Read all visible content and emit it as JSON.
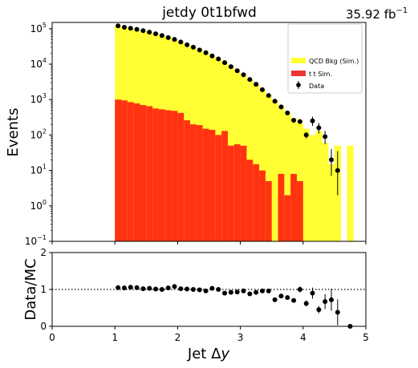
{
  "header": {
    "title": "jetdy   0t1bfwd",
    "lumi_value": "35.92 fb",
    "lumi_exp": "−1"
  },
  "legend": {
    "qcd_label": "QCD Bkg (Sim.)",
    "ttbar_label": "t t Sim.",
    "data_label": "Data"
  },
  "colors": {
    "qcd": "#ffff33",
    "ttbar": "#ff3311",
    "ttbar_legend": "#ee3333",
    "data": "#000000"
  },
  "chart_data": [
    {
      "type": "bar",
      "title": "jetdy   0t1bfwd",
      "ylabel": "Events",
      "yscale": "log",
      "ylim": [
        0.1,
        150000
      ],
      "xlim": [
        0,
        5
      ],
      "bin_width": 0.1,
      "bin_lo": [
        1.0,
        1.1,
        1.2,
        1.3,
        1.4,
        1.5,
        1.6,
        1.7,
        1.8,
        1.9,
        2.0,
        2.1,
        2.2,
        2.3,
        2.4,
        2.5,
        2.6,
        2.7,
        2.8,
        2.9,
        3.0,
        3.1,
        3.2,
        3.3,
        3.4,
        3.5,
        3.6,
        3.7,
        3.8,
        3.9,
        4.0,
        4.1,
        4.2,
        4.3,
        4.4,
        4.5,
        4.6,
        4.7
      ],
      "x_ticks": [
        "0",
        "1",
        "2",
        "3",
        "4",
        "5"
      ],
      "y_ticks": [
        {
          "base": "10",
          "exp": "−1",
          "value": 0.1
        },
        {
          "base": "10",
          "exp": "0",
          "value": 1
        },
        {
          "base": "10",
          "exp": "1",
          "value": 10
        },
        {
          "base": "10",
          "exp": "2",
          "value": 100
        },
        {
          "base": "10",
          "exp": "3",
          "value": 1000
        },
        {
          "base": "10",
          "exp": "4",
          "value": 10000
        },
        {
          "base": "10",
          "exp": "5",
          "value": 100000
        }
      ],
      "series": [
        {
          "name": "QCD Bkg (Sim.)",
          "stack_total": [
            118000,
            108000,
            101000,
            95000,
            88000,
            80000,
            72000,
            64000,
            56000,
            49000,
            42000,
            35000,
            30000,
            25000,
            21000,
            17000,
            14000,
            11000,
            8500,
            6500,
            5000,
            3700,
            2700,
            1900,
            1350,
            950,
            650,
            450,
            300,
            210,
            150,
            100,
            130,
            60,
            15,
            50,
            0,
            50
          ]
        },
        {
          "name": "tt Sim.",
          "values": [
            1000,
            950,
            850,
            780,
            700,
            650,
            560,
            530,
            500,
            480,
            420,
            260,
            200,
            190,
            150,
            140,
            100,
            130,
            50,
            55,
            50,
            20,
            15,
            10,
            5,
            0.1,
            8,
            2,
            8,
            5,
            0.1,
            0,
            0,
            0,
            0,
            0,
            0,
            0
          ]
        }
      ]
    },
    {
      "type": "scatter",
      "name": "Data",
      "x": [
        1.05,
        1.15,
        1.25,
        1.35,
        1.45,
        1.55,
        1.65,
        1.75,
        1.85,
        1.95,
        2.05,
        2.15,
        2.25,
        2.35,
        2.45,
        2.55,
        2.65,
        2.75,
        2.85,
        2.95,
        3.05,
        3.15,
        3.25,
        3.35,
        3.45,
        3.55,
        3.65,
        3.75,
        3.85,
        3.95,
        4.05,
        4.15,
        4.25,
        4.35,
        4.45,
        4.55,
        4.65
      ],
      "y": [
        120000,
        110000,
        103000,
        96000,
        88000,
        80000,
        72000,
        64000,
        56000,
        50000,
        42000,
        35000,
        30000,
        25000,
        21000,
        17000,
        14000,
        11000,
        8500,
        6500,
        5000,
        3700,
        2700,
        1900,
        1300,
        900,
        620,
        420,
        260,
        240,
        100,
        250,
        160,
        90,
        20,
        10,
        0
      ],
      "yerr_up": [
        0,
        0,
        0,
        0,
        0,
        0,
        0,
        0,
        0,
        0,
        0,
        0,
        0,
        0,
        0,
        0,
        0,
        0,
        0,
        0,
        0,
        0,
        0,
        0,
        0,
        0,
        0,
        0,
        0,
        30,
        20,
        80,
        60,
        40,
        20,
        25,
        0
      ],
      "yerr_dn": [
        0,
        0,
        0,
        0,
        0,
        0,
        0,
        0,
        0,
        0,
        0,
        0,
        0,
        0,
        0,
        0,
        0,
        0,
        0,
        0,
        0,
        0,
        0,
        0,
        0,
        0,
        0,
        0,
        0,
        30,
        20,
        70,
        50,
        35,
        13,
        8,
        0
      ]
    },
    {
      "type": "scatter",
      "ylabel": "Data/MC",
      "xlabel": "Jet Δy",
      "xlabel_main": "Jet Δ",
      "xlabel_var": "y",
      "ylim": [
        0,
        2
      ],
      "xlim": [
        0,
        5
      ],
      "reference_line": 1,
      "y_ticks": [
        "0",
        "1",
        "2"
      ],
      "x_ticks": [
        "0",
        "1",
        "2",
        "3",
        "4",
        "5"
      ],
      "x": [
        1.05,
        1.15,
        1.25,
        1.35,
        1.45,
        1.55,
        1.65,
        1.75,
        1.85,
        1.95,
        2.05,
        2.15,
        2.25,
        2.35,
        2.45,
        2.55,
        2.65,
        2.75,
        2.85,
        2.95,
        3.05,
        3.15,
        3.25,
        3.35,
        3.45,
        3.55,
        3.65,
        3.75,
        3.85,
        3.95,
        4.05,
        4.15,
        4.25,
        4.35,
        4.45,
        4.55,
        4.75
      ],
      "y": [
        1.05,
        1.04,
        1.06,
        1.05,
        1.02,
        1.03,
        1.01,
        1.0,
        1.04,
        1.08,
        1.02,
        1.01,
        1.0,
        0.99,
        0.96,
        1.03,
        1.0,
        0.9,
        0.92,
        0.93,
        0.96,
        0.88,
        0.92,
        0.96,
        0.96,
        0.72,
        0.82,
        0.78,
        0.7,
        1.0,
        0.62,
        0.9,
        0.45,
        0.67,
        0.72,
        0.38,
        0.0
      ],
      "yerr": [
        0,
        0,
        0,
        0,
        0,
        0,
        0,
        0,
        0,
        0,
        0,
        0,
        0,
        0,
        0,
        0,
        0,
        0,
        0,
        0,
        0,
        0,
        0,
        0,
        0,
        0,
        0,
        0,
        0,
        0.08,
        0.08,
        0.15,
        0.1,
        0.2,
        0.3,
        0.35,
        0
      ]
    }
  ]
}
